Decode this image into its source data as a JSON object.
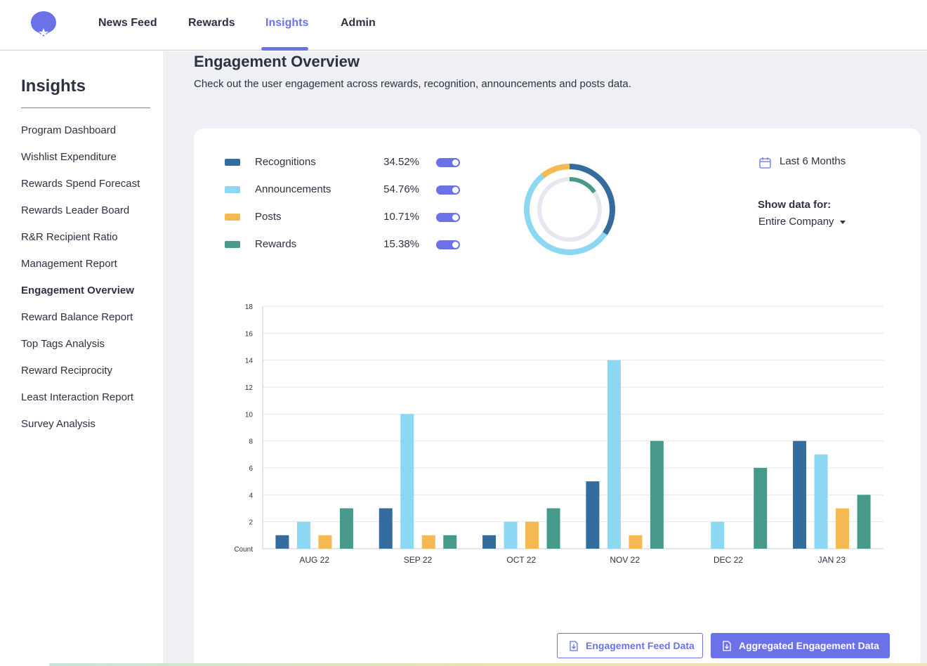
{
  "nav": {
    "items": [
      {
        "label": "News Feed"
      },
      {
        "label": "Rewards"
      },
      {
        "label": "Insights"
      },
      {
        "label": "Admin"
      }
    ],
    "active": "Insights",
    "accent_color": "#6b72e8"
  },
  "sidebar": {
    "title": "Insights",
    "items": [
      {
        "label": "Program Dashboard"
      },
      {
        "label": "Wishlist Expenditure"
      },
      {
        "label": "Rewards Spend Forecast"
      },
      {
        "label": "Rewards Leader Board"
      },
      {
        "label": "R&R Recipient Ratio"
      },
      {
        "label": "Management Report"
      },
      {
        "label": "Engagement Overview"
      },
      {
        "label": "Reward Balance Report"
      },
      {
        "label": "Top Tags Analysis"
      },
      {
        "label": "Reward Reciprocity"
      },
      {
        "label": "Least Interaction Report"
      },
      {
        "label": "Survey Analysis"
      }
    ],
    "active": "Engagement Overview"
  },
  "page": {
    "title": "Engagement Overview",
    "subtitle": "Check out the user engagement across rewards, recognition, announcements and posts data."
  },
  "legend": [
    {
      "label": "Recognitions",
      "percent": "34.52%",
      "color": "#346c9e",
      "enabled": true
    },
    {
      "label": "Announcements",
      "percent": "54.76%",
      "color": "#8cd8f3",
      "enabled": true
    },
    {
      "label": "Posts",
      "percent": "10.71%",
      "color": "#f4b953",
      "enabled": true
    },
    {
      "label": "Rewards",
      "percent": "15.38%",
      "color": "#479a8b",
      "enabled": true
    }
  ],
  "filters": {
    "date_range": "Last 6 Months",
    "show_data_label": "Show data for:",
    "show_data_value": "Entire Company"
  },
  "buttons": {
    "feed": "Engagement Feed Data",
    "aggregated": "Aggregated Engagement Data"
  },
  "chart_data": {
    "type": "bar",
    "categories": [
      "AUG 22",
      "SEP 22",
      "OCT 22",
      "NOV 22",
      "DEC 22",
      "JAN 23"
    ],
    "series": [
      {
        "name": "Recognitions",
        "values": [
          1,
          3,
          1,
          5,
          0,
          8
        ],
        "color": "#346c9e"
      },
      {
        "name": "Announcements",
        "values": [
          2,
          10,
          2,
          14,
          2,
          7
        ],
        "color": "#8cd8f3"
      },
      {
        "name": "Posts",
        "values": [
          1,
          1,
          2,
          1,
          0,
          3
        ],
        "color": "#f4b953"
      },
      {
        "name": "Rewards",
        "values": [
          3,
          1,
          3,
          8,
          6,
          4
        ],
        "color": "#479a8b"
      }
    ],
    "yticks": [
      "Count",
      "2",
      "4",
      "6",
      "8",
      "10",
      "12",
      "14",
      "16",
      "18"
    ],
    "ylim": [
      0,
      18
    ],
    "grid": true
  }
}
